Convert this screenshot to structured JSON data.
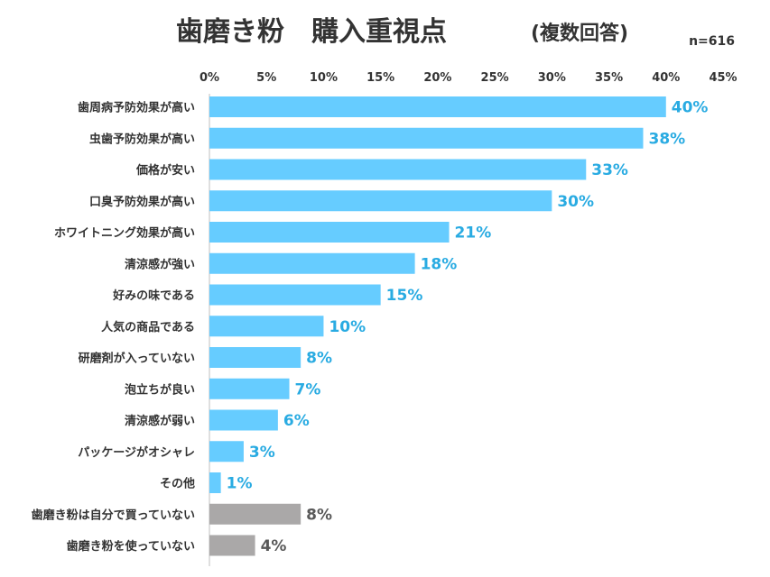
{
  "title": "歯磨き粉　購入重視点",
  "subtitle": "(複数回答)",
  "sample": "n=616",
  "colors": {
    "primary": "#66ccff",
    "secondary": "#aaa8a8",
    "primary_label": "#29abe2",
    "secondary_label": "#595959"
  },
  "chart_data": {
    "type": "bar",
    "orientation": "horizontal",
    "title": "歯磨き粉　購入重視点",
    "subtitle": "(複数回答)",
    "xlim": [
      0,
      45
    ],
    "ticks": [
      0,
      5,
      10,
      15,
      20,
      25,
      30,
      35,
      40,
      45
    ],
    "tick_labels": [
      "0%",
      "5%",
      "10%",
      "15%",
      "20%",
      "25%",
      "30%",
      "35%",
      "40%",
      "45%"
    ],
    "tick_position": "top",
    "grid": false,
    "categories": [
      "歯周病予防効果が高い",
      "虫歯予防効果が高い",
      "価格が安い",
      "口臭予防効果が高い",
      "ホワイトニング効果が高い",
      "清涼感が強い",
      "好みの味である",
      "人気の商品である",
      "研磨剤が入っていない",
      "泡立ちが良い",
      "清涼感が弱い",
      "パッケージがオシャレ",
      "その他",
      "歯磨き粉は自分で買っていない",
      "歯磨き粉を使っていない"
    ],
    "values": [
      40,
      38,
      33,
      30,
      21,
      18,
      15,
      10,
      8,
      7,
      6,
      3,
      1,
      8,
      4
    ],
    "value_labels": [
      "40%",
      "38%",
      "33%",
      "30%",
      "21%",
      "18%",
      "15%",
      "10%",
      "8%",
      "7%",
      "6%",
      "3%",
      "1%",
      "8%",
      "4%"
    ],
    "bar_group": [
      "primary",
      "primary",
      "primary",
      "primary",
      "primary",
      "primary",
      "primary",
      "primary",
      "primary",
      "primary",
      "primary",
      "primary",
      "primary",
      "secondary",
      "secondary"
    ]
  }
}
